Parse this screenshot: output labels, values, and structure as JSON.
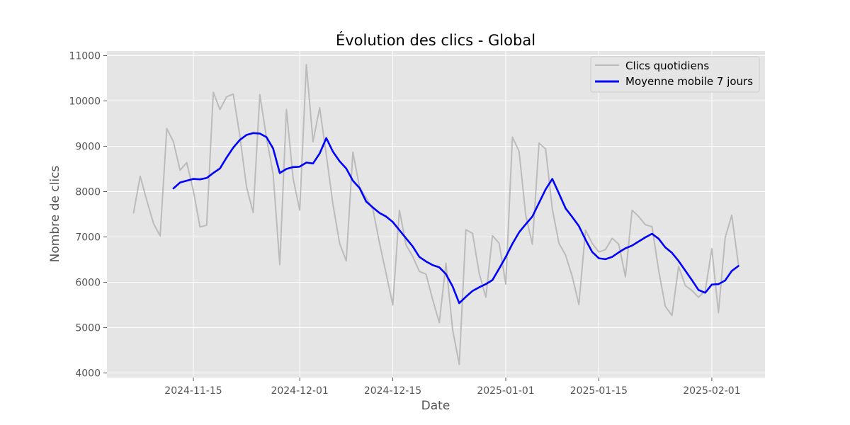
{
  "chart_data": {
    "type": "line",
    "title": "Évolution des clics - Global",
    "xlabel": "Date",
    "ylabel": "Nombre de clics",
    "xlim": [
      "2024-11-02",
      "2025-02-09"
    ],
    "ylim": [
      3900,
      11100
    ],
    "yticks": [
      4000,
      5000,
      6000,
      7000,
      8000,
      9000,
      10000,
      11000
    ],
    "xticks": [
      "2024-11-15",
      "2024-12-01",
      "2024-12-15",
      "2025-01-01",
      "2025-01-15",
      "2025-02-01"
    ],
    "grid": true,
    "legend_position": "top-right",
    "series": [
      {
        "name": "Clics quotidiens",
        "color": "#bbbbbb",
        "start": "2024-11-06",
        "values": [
          7530,
          8340,
          7800,
          7300,
          7020,
          9390,
          9100,
          8470,
          8640,
          8020,
          7220,
          7260,
          10190,
          9810,
          10090,
          10150,
          9220,
          8100,
          7540,
          10140,
          9190,
          8390,
          6390,
          9810,
          8300,
          7590,
          10800,
          9100,
          9850,
          8810,
          7720,
          6860,
          6470,
          8870,
          8100,
          7860,
          7620,
          6870,
          6190,
          5500,
          7590,
          6820,
          6570,
          6240,
          6180,
          5620,
          5110,
          6420,
          4960,
          4190,
          7160,
          7080,
          6200,
          5670,
          7030,
          6860,
          5960,
          9200,
          8890,
          7480,
          6840,
          9070,
          8940,
          7620,
          6860,
          6600,
          6130,
          5510,
          7150,
          6860,
          6670,
          6720,
          6970,
          6840,
          6120,
          7590,
          7450,
          7270,
          7230,
          6260,
          5470,
          5270,
          6350,
          5930,
          5820,
          5670,
          5810,
          6740,
          5330,
          6980,
          7480,
          6390
        ]
      },
      {
        "name": "Moyenne mobile 7 jours",
        "color": "#0000ff",
        "start": "2024-11-12",
        "values": [
          8070,
          8200,
          8240,
          8280,
          8270,
          8300,
          8410,
          8510,
          8750,
          8970,
          9140,
          9250,
          9290,
          9280,
          9200,
          8950,
          8410,
          8500,
          8540,
          8550,
          8640,
          8620,
          8840,
          9180,
          8880,
          8670,
          8510,
          8240,
          8080,
          7780,
          7650,
          7530,
          7450,
          7330,
          7150,
          6970,
          6790,
          6560,
          6460,
          6380,
          6330,
          6180,
          5910,
          5540,
          5680,
          5810,
          5890,
          5960,
          6050,
          6300,
          6560,
          6850,
          7100,
          7280,
          7450,
          7750,
          8050,
          8280,
          7960,
          7630,
          7440,
          7240,
          6940,
          6670,
          6530,
          6510,
          6560,
          6660,
          6750,
          6810,
          6900,
          6990,
          7070,
          6960,
          6770,
          6650,
          6470,
          6260,
          6050,
          5830,
          5770,
          5950,
          5960,
          6040,
          6250,
          6360
        ]
      }
    ]
  }
}
